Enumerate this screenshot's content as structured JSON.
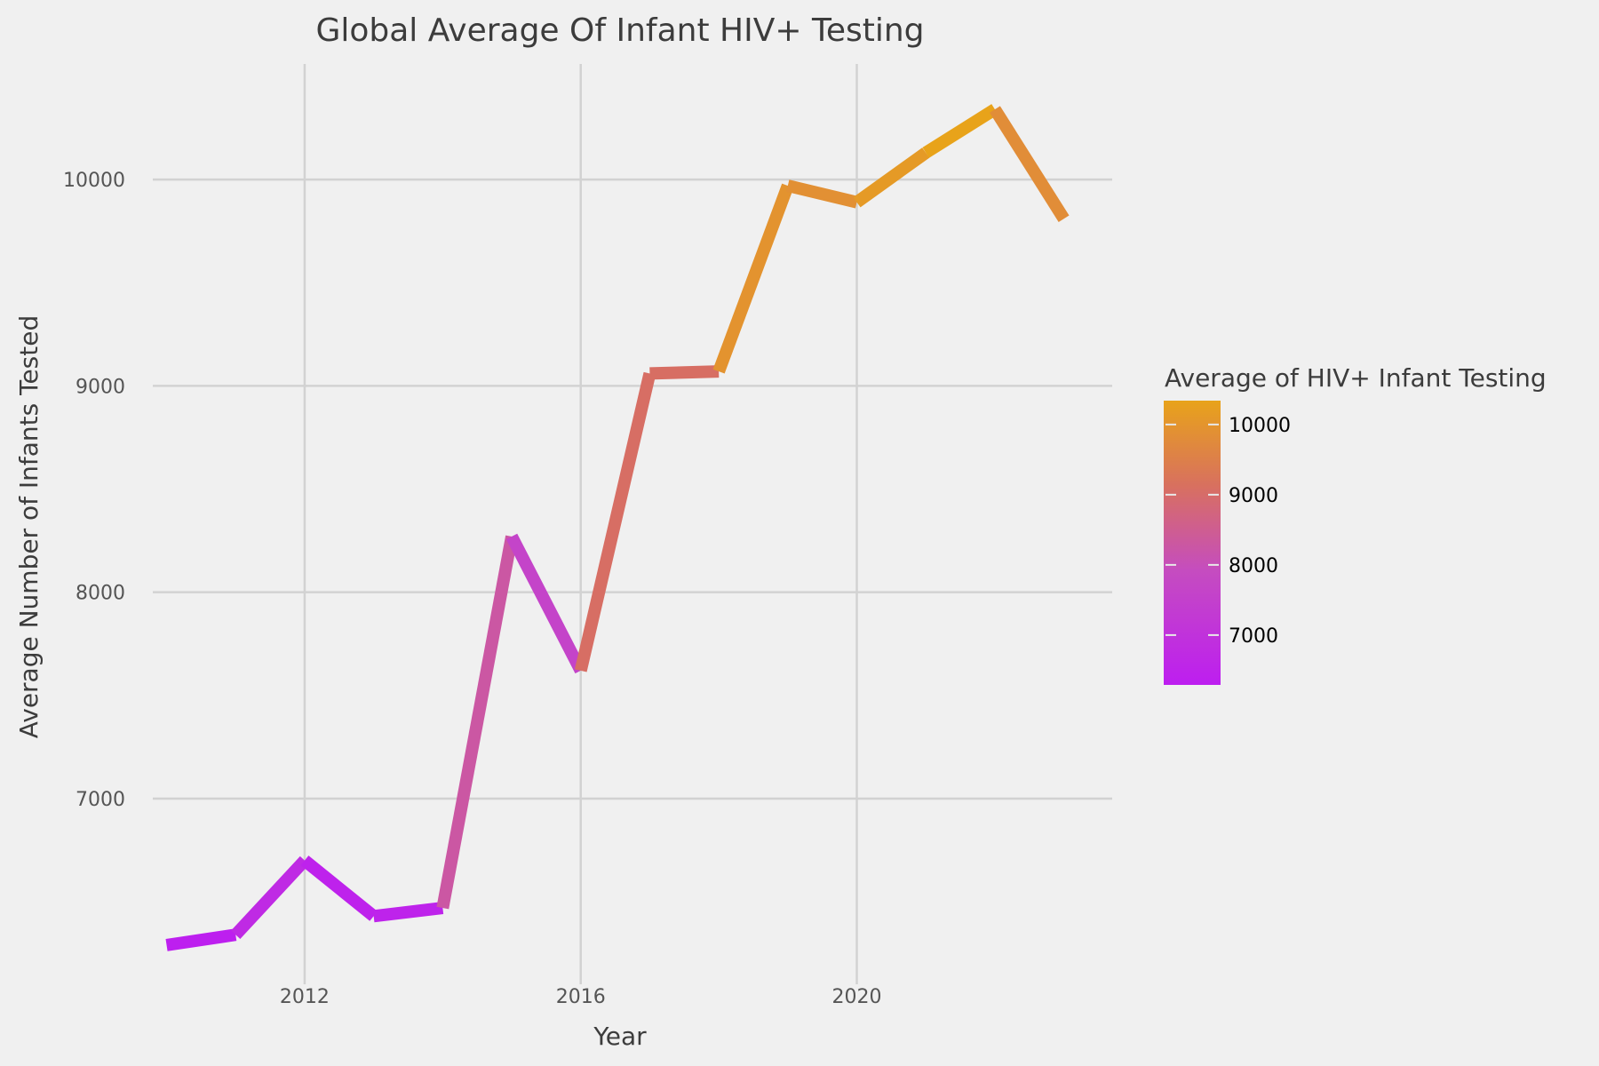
{
  "chart_data": {
    "type": "line",
    "title": "Global Average Of Infant HIV+ Testing",
    "xlabel": "Year",
    "ylabel": "Average Number of Infants Tested",
    "xlim": [
      2009.8,
      2023.7
    ],
    "ylim": [
      6100,
      10560
    ],
    "x_ticks": [
      2012,
      2016,
      2020
    ],
    "y_ticks": [
      7000,
      8000,
      9000,
      10000
    ],
    "grid": true,
    "series": [
      {
        "x": [
          2010,
          2011,
          2012,
          2013,
          2014,
          2015,
          2016,
          2017,
          2018,
          2019,
          2020,
          2021,
          2022,
          2023
        ],
        "values": [
          6290,
          6340,
          6700,
          6430,
          6470,
          8270,
          7620,
          9060,
          9070,
          9970,
          9890,
          10130,
          10340,
          9810
        ]
      }
    ],
    "color_scale": {
      "title": "Average of HIV+ Infant Testing",
      "min": 6290,
      "max": 10340,
      "ticks": [
        7000,
        8000,
        9000,
        10000
      ],
      "colors": [
        "#bd1ef0",
        "#c54cc0",
        "#d8705f",
        "#e8a31a"
      ]
    },
    "legend_position": "right",
    "colors": {
      "background": "#f0f0f0",
      "grid": "#d2d2d2",
      "text": "#3c3c3c",
      "tick_text": "#555555"
    }
  }
}
